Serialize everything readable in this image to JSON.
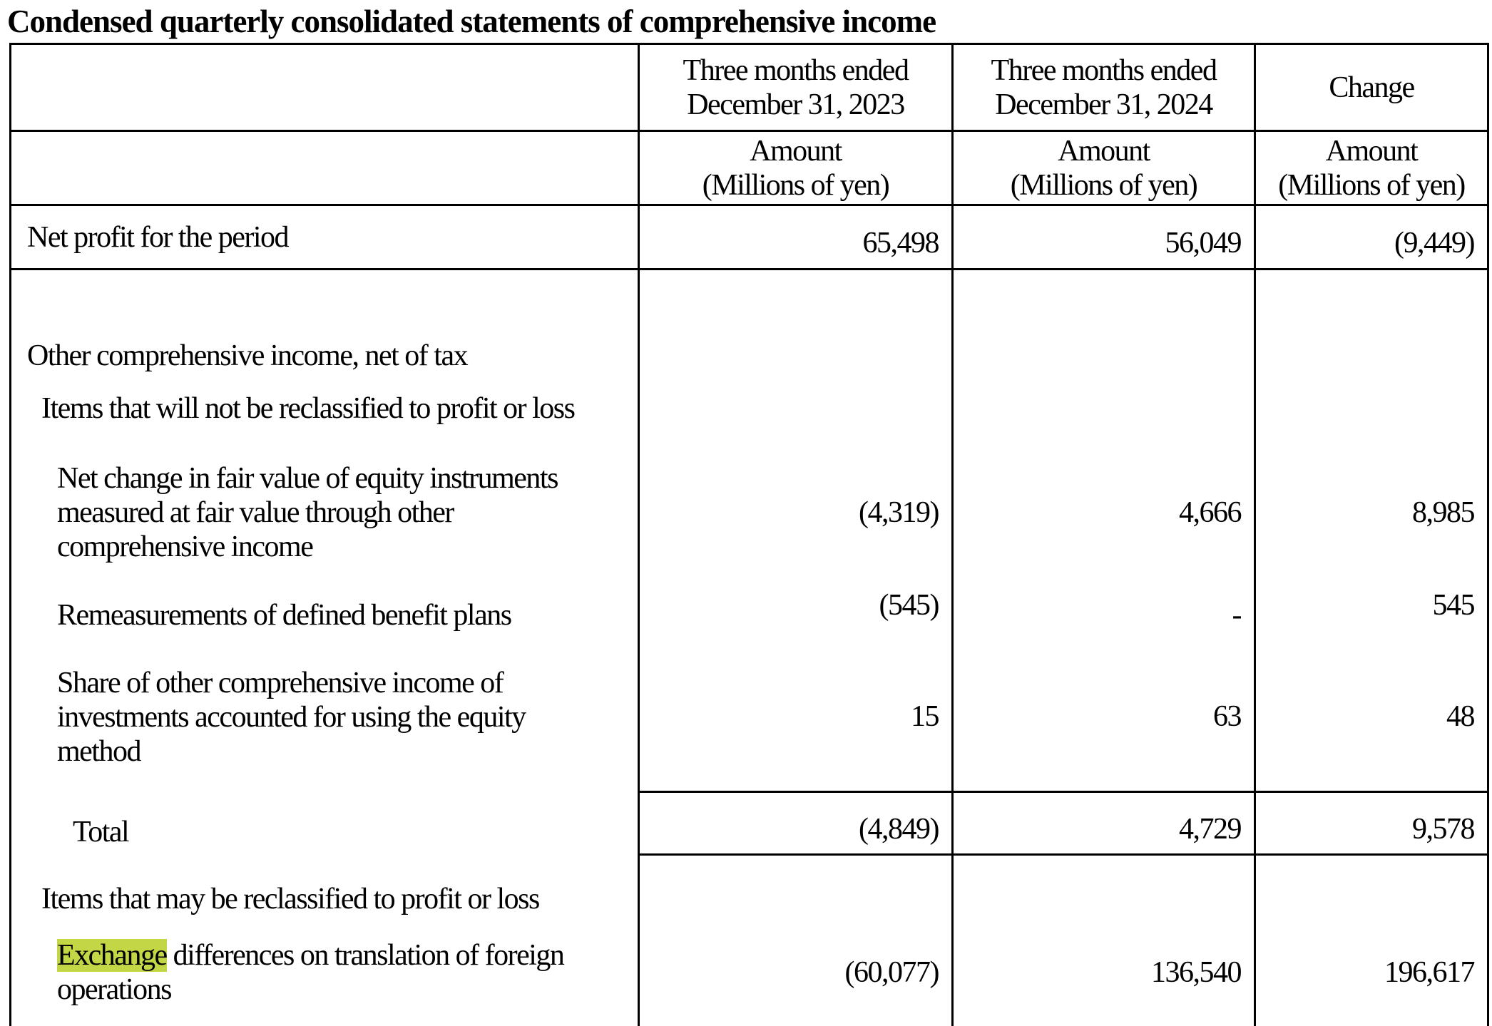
{
  "title": "Condensed quarterly consolidated statements of comprehensive income",
  "header": {
    "col1": "Three months ended December 31, 2023",
    "col2": "Three months ended December 31, 2024",
    "col3": "Change",
    "unit_amount": "Amount",
    "unit_label": "(Millions of yen)"
  },
  "rows": {
    "net_profit": {
      "label": "Net profit for the period",
      "v2023": "65,498",
      "v2024": "56,049",
      "change": "(9,449)"
    },
    "oci_heading": {
      "label": "Other comprehensive income, net of tax"
    },
    "not_reclass_heading": {
      "label": "Items that will not be reclassified to profit or loss"
    },
    "fair_value": {
      "label": "Net change in fair value of equity instruments measured at fair value through other comprehensive income",
      "v2023": "(4,319)",
      "v2024": "4,666",
      "change": "8,985"
    },
    "remeasurements": {
      "label": "Remeasurements of defined benefit plans",
      "v2023": "(545)",
      "v2024": "-",
      "change": "545"
    },
    "share_oci": {
      "label": "Share of other comprehensive income of investments accounted for using the equity method",
      "v2023": "15",
      "v2024": "63",
      "change": "48"
    },
    "total": {
      "label": "Total",
      "v2023": "(4,849)",
      "v2024": "4,729",
      "change": "9,578"
    },
    "may_reclass_heading": {
      "label": "Items that may be reclassified to profit or loss"
    },
    "exchange": {
      "label_highlight": "Exchange",
      "label_rest": " differences on translation of foreign operations",
      "v2023": "(60,077)",
      "v2024": "136,540",
      "change": "196,617"
    }
  },
  "highlight_color": "#c3d646"
}
